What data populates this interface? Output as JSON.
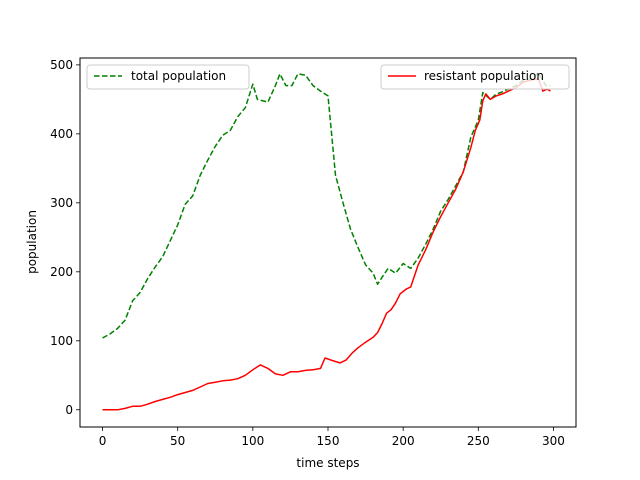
{
  "chart_data": {
    "type": "line",
    "xlabel": "time steps",
    "ylabel": "population",
    "xlim": [
      -15,
      315
    ],
    "ylim": [
      -25,
      510
    ],
    "xticks": [
      0,
      50,
      100,
      150,
      200,
      250,
      300
    ],
    "yticks": [
      0,
      100,
      200,
      300,
      400,
      500
    ],
    "grid": false,
    "series": [
      {
        "name": "total population",
        "color": "#008000",
        "style": "dashed",
        "legend_position": "top-left",
        "points": [
          [
            0,
            104
          ],
          [
            5,
            110
          ],
          [
            10,
            118
          ],
          [
            15,
            130
          ],
          [
            20,
            158
          ],
          [
            25,
            170
          ],
          [
            30,
            190
          ],
          [
            35,
            207
          ],
          [
            40,
            222
          ],
          [
            45,
            245
          ],
          [
            50,
            268
          ],
          [
            55,
            298
          ],
          [
            60,
            310
          ],
          [
            65,
            340
          ],
          [
            70,
            362
          ],
          [
            75,
            382
          ],
          [
            80,
            398
          ],
          [
            85,
            405
          ],
          [
            90,
            425
          ],
          [
            95,
            438
          ],
          [
            100,
            472
          ],
          [
            103,
            450
          ],
          [
            110,
            446
          ],
          [
            115,
            470
          ],
          [
            118,
            487
          ],
          [
            122,
            470
          ],
          [
            126,
            470
          ],
          [
            130,
            487
          ],
          [
            135,
            485
          ],
          [
            140,
            470
          ],
          [
            145,
            462
          ],
          [
            150,
            455
          ],
          [
            155,
            340
          ],
          [
            160,
            300
          ],
          [
            165,
            262
          ],
          [
            170,
            235
          ],
          [
            175,
            210
          ],
          [
            180,
            198
          ],
          [
            183,
            182
          ],
          [
            186,
            192
          ],
          [
            190,
            205
          ],
          [
            195,
            198
          ],
          [
            200,
            212
          ],
          [
            205,
            205
          ],
          [
            210,
            220
          ],
          [
            215,
            240
          ],
          [
            220,
            262
          ],
          [
            225,
            288
          ],
          [
            230,
            305
          ],
          [
            235,
            325
          ],
          [
            240,
            345
          ],
          [
            245,
            395
          ],
          [
            250,
            420
          ],
          [
            253,
            460
          ],
          [
            258,
            450
          ],
          [
            262,
            458
          ],
          [
            265,
            460
          ],
          [
            270,
            465
          ],
          [
            275,
            470
          ],
          [
            280,
            478
          ],
          [
            285,
            480
          ],
          [
            290,
            488
          ],
          [
            295,
            470
          ],
          [
            298,
            470
          ]
        ]
      },
      {
        "name": "resistant population",
        "color": "#ff0000",
        "style": "solid",
        "legend_position": "top-right",
        "points": [
          [
            0,
            0
          ],
          [
            5,
            0
          ],
          [
            10,
            0
          ],
          [
            15,
            2
          ],
          [
            20,
            5
          ],
          [
            25,
            5
          ],
          [
            30,
            8
          ],
          [
            35,
            12
          ],
          [
            40,
            15
          ],
          [
            45,
            18
          ],
          [
            50,
            22
          ],
          [
            55,
            25
          ],
          [
            60,
            28
          ],
          [
            65,
            33
          ],
          [
            70,
            38
          ],
          [
            75,
            40
          ],
          [
            80,
            42
          ],
          [
            85,
            43
          ],
          [
            90,
            45
          ],
          [
            95,
            50
          ],
          [
            100,
            58
          ],
          [
            105,
            65
          ],
          [
            110,
            60
          ],
          [
            115,
            52
          ],
          [
            120,
            50
          ],
          [
            125,
            55
          ],
          [
            130,
            55
          ],
          [
            135,
            57
          ],
          [
            140,
            58
          ],
          [
            145,
            60
          ],
          [
            148,
            75
          ],
          [
            152,
            72
          ],
          [
            158,
            68
          ],
          [
            162,
            72
          ],
          [
            166,
            82
          ],
          [
            170,
            90
          ],
          [
            175,
            98
          ],
          [
            180,
            105
          ],
          [
            183,
            112
          ],
          [
            186,
            125
          ],
          [
            189,
            140
          ],
          [
            192,
            145
          ],
          [
            195,
            155
          ],
          [
            198,
            168
          ],
          [
            202,
            175
          ],
          [
            205,
            178
          ],
          [
            210,
            210
          ],
          [
            215,
            232
          ],
          [
            220,
            258
          ],
          [
            225,
            280
          ],
          [
            230,
            300
          ],
          [
            235,
            320
          ],
          [
            240,
            345
          ],
          [
            245,
            380
          ],
          [
            248,
            405
          ],
          [
            251,
            420
          ],
          [
            253,
            448
          ],
          [
            255,
            458
          ],
          [
            258,
            450
          ],
          [
            262,
            455
          ],
          [
            266,
            458
          ],
          [
            270,
            462
          ],
          [
            275,
            467
          ],
          [
            280,
            475
          ],
          [
            285,
            478
          ],
          [
            290,
            480
          ],
          [
            293,
            462
          ],
          [
            296,
            465
          ],
          [
            298,
            462
          ]
        ]
      }
    ]
  }
}
